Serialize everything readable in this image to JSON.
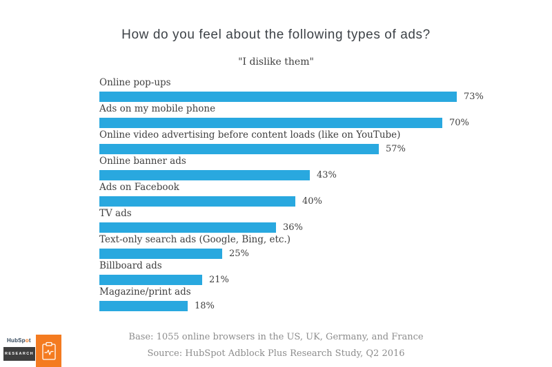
{
  "title": "How do you feel about the following types of ads?",
  "subtitle": "\"I dislike them\"",
  "chart_data": {
    "type": "bar",
    "orientation": "horizontal",
    "title": "How do you feel about the following types of ads?",
    "subtitle": "\"I dislike them\"",
    "categories": [
      "Online pop-ups",
      "Ads on my mobile phone",
      "Online video advertising before content loads (like on YouTube)",
      "Online banner ads",
      "Ads on Facebook",
      "TV ads",
      "Text-only search ads (Google, Bing, etc.)",
      "Billboard ads",
      "Magazine/print ads"
    ],
    "values": [
      73,
      70,
      57,
      43,
      40,
      36,
      25,
      21,
      18
    ],
    "value_suffix": "%",
    "xlim": [
      0,
      80
    ],
    "grid": false,
    "legend": false,
    "bar_color": "#29a8df",
    "label_color": "#3e3e3e"
  },
  "footer": {
    "base_note": "Base: 1055 online browsers in the US, UK, Germany, and France",
    "source_note": "Source: HubSpot Adblock Plus Research Study, Q2 2016"
  },
  "branding": {
    "logo_prefix": "HubSp",
    "logo_o": "o",
    "logo_suffix": "t",
    "research_label": "RESEARCH",
    "orange": "#f47b20",
    "dark_gray": "#3e3e3e",
    "icon": "clipboard-pulse-icon"
  }
}
